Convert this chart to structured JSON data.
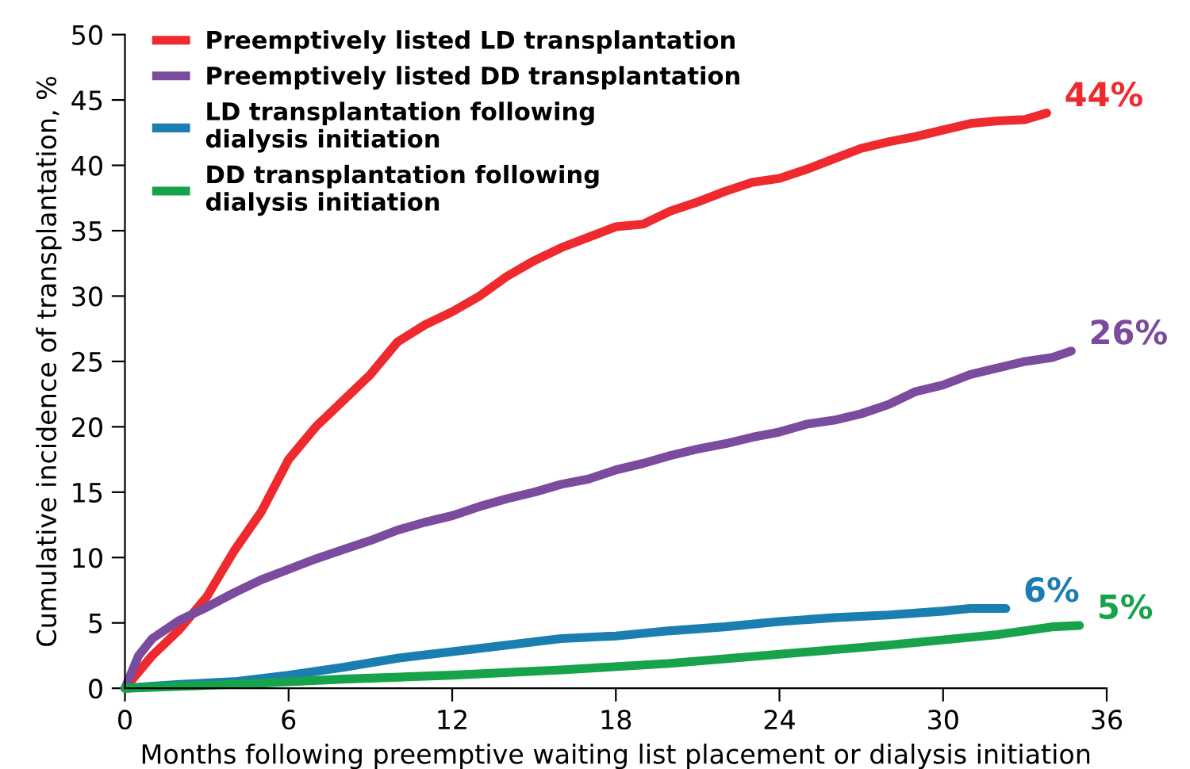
{
  "chart_data": {
    "type": "line",
    "xlabel": "Months following preemptive waiting list placement or dialysis initiation",
    "ylabel": "Cumulative incidence of transplantation, %",
    "xlim": [
      0,
      36
    ],
    "ylim": [
      0,
      50
    ],
    "xticks": [
      0,
      6,
      12,
      18,
      24,
      30,
      36
    ],
    "yticks": [
      0,
      5,
      10,
      15,
      20,
      25,
      30,
      35,
      40,
      45,
      50
    ],
    "legend": "top left",
    "grid": false,
    "line_style": "solid",
    "series": [
      {
        "name": "Preemptively listed LD transplantation",
        "color": "#ee2a2e",
        "x": [
          0,
          1,
          2,
          3,
          4,
          5,
          6,
          7,
          8,
          9,
          10,
          11,
          12,
          13,
          14,
          15,
          16,
          17,
          18,
          19,
          20,
          21,
          22,
          23,
          24,
          25,
          26,
          27,
          28,
          29,
          30,
          31,
          32,
          33,
          33.8
        ],
        "values": [
          0,
          2.5,
          4.5,
          7,
          10.5,
          13.5,
          17.5,
          20,
          22,
          24,
          26.5,
          27.8,
          28.8,
          30,
          31.5,
          32.7,
          33.7,
          34.5,
          35.3,
          35.5,
          36.5,
          37.2,
          38,
          38.7,
          39,
          39.7,
          40.5,
          41.3,
          41.8,
          42.2,
          42.7,
          43.2,
          43.4,
          43.5,
          44
        ]
      },
      {
        "name": "Preemptively listed DD transplantation",
        "color": "#7b4c9e",
        "x": [
          0,
          0.5,
          1,
          2,
          3,
          4,
          5,
          6,
          7,
          8,
          9,
          10,
          11,
          12,
          13,
          14,
          15,
          16,
          17,
          18,
          19,
          20,
          21,
          22,
          23,
          24,
          25,
          26,
          27,
          28,
          29,
          30,
          31,
          32,
          33,
          34,
          34.7
        ],
        "values": [
          0,
          2.5,
          3.8,
          5.2,
          6.2,
          7.3,
          8.3,
          9.1,
          9.9,
          10.6,
          11.3,
          12.1,
          12.7,
          13.2,
          13.9,
          14.5,
          15,
          15.6,
          16,
          16.7,
          17.2,
          17.8,
          18.3,
          18.7,
          19.2,
          19.6,
          20.2,
          20.5,
          21,
          21.7,
          22.7,
          23.2,
          24,
          24.5,
          25,
          25.3,
          25.8
        ]
      },
      {
        "name": "LD transplantation following\ndialysis initiation",
        "color": "#1a7eb0",
        "x": [
          0,
          2,
          4,
          6,
          8,
          10,
          12,
          14,
          16,
          18,
          20,
          22,
          24,
          26,
          28,
          30,
          31,
          32.3
        ],
        "values": [
          0,
          0.3,
          0.5,
          1,
          1.6,
          2.3,
          2.8,
          3.3,
          3.8,
          4.0,
          4.4,
          4.7,
          5.1,
          5.4,
          5.6,
          5.9,
          6.1,
          6.1
        ]
      },
      {
        "name": "DD transplantation following\ndialysis initiation",
        "color": "#17a34a",
        "x": [
          0,
          4,
          8,
          12,
          16,
          20,
          24,
          28,
          32,
          34,
          35
        ],
        "values": [
          0,
          0.3,
          0.7,
          1.0,
          1.4,
          1.9,
          2.6,
          3.3,
          4.1,
          4.7,
          4.8
        ]
      }
    ],
    "annotations": [
      {
        "text": "44%",
        "x": 33.8,
        "y": 44
      },
      {
        "text": "26%",
        "x": 34.7,
        "y": 25.8
      },
      {
        "text": "6%",
        "x": 32.3,
        "y": 6.1
      },
      {
        "text": "5%",
        "x": 35,
        "y": 4.8
      }
    ]
  }
}
